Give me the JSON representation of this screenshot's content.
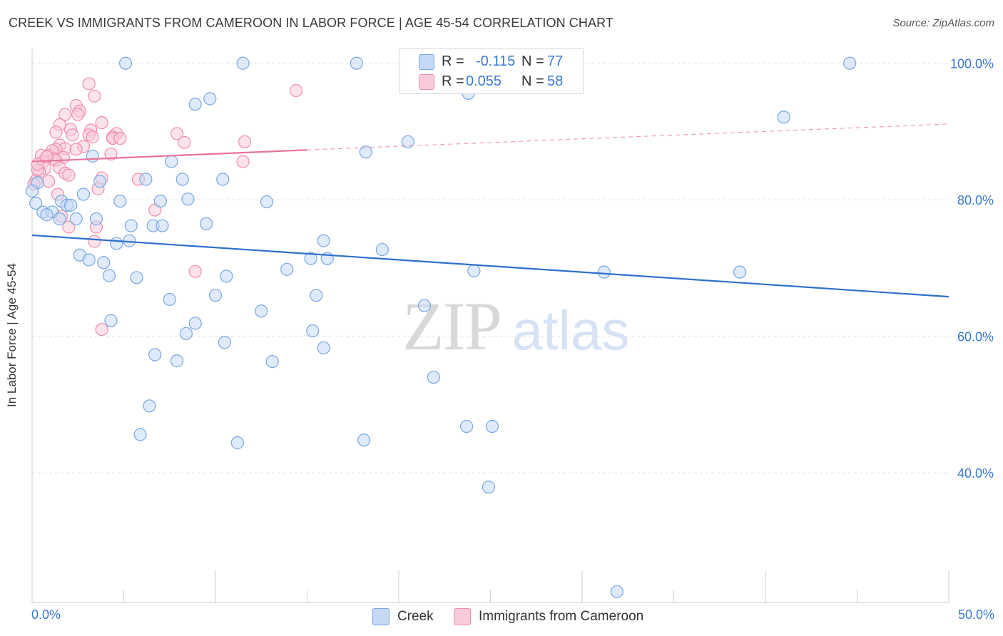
{
  "title": "CREEK VS IMMIGRANTS FROM CAMEROON IN LABOR FORCE | AGE 45-54 CORRELATION CHART",
  "source": "Source: ZipAtlas.com",
  "watermark": {
    "zip": "ZIP",
    "atlas": "atlas"
  },
  "stats": {
    "creek": {
      "r_label": "R = ",
      "r_value": "-0.115",
      "n_label": "N = ",
      "n_value": "77"
    },
    "cameroon": {
      "r_label": "R = ",
      "r_value": "0.055",
      "n_label": "N = ",
      "n_value": "58"
    }
  },
  "legend": {
    "creek": "Creek",
    "cameroon": "Immigrants from Cameroon"
  },
  "colors": {
    "creek_fill": "#c5d9f5",
    "creek_stroke": "#7aa7e0",
    "creek_line": "#2f6fcc",
    "cameroon_fill": "#f9cbd9",
    "cameroon_stroke": "#ee8fae",
    "cameroon_line": "#e8729a",
    "tick_text": "#3a78d4",
    "grid": "#e3e3e3"
  },
  "chart_data": {
    "type": "scatter",
    "xlabel": "",
    "ylabel": "In Labor Force | Age 45-54",
    "xlim": [
      0,
      50
    ],
    "ylim": [
      21,
      103
    ],
    "x_tick_labels": [
      "0.0%",
      "50.0%"
    ],
    "y_ticks": [
      40,
      60,
      80,
      100
    ],
    "y_tick_labels": [
      "40.0%",
      "60.0%",
      "80.0%",
      "100.0%"
    ],
    "grid": true,
    "series": [
      {
        "name": "Creek",
        "trend": {
          "x0": 0,
          "y0": 74.8,
          "x1": 50,
          "y1": 65.8
        },
        "points": [
          [
            5.1,
            100
          ],
          [
            11.5,
            100
          ],
          [
            17.7,
            100
          ],
          [
            44.6,
            100
          ],
          [
            24.2,
            100
          ],
          [
            23.8,
            95.6
          ],
          [
            9.7,
            94.8
          ],
          [
            8.9,
            94
          ],
          [
            41,
            92.1
          ],
          [
            20.5,
            88.5
          ],
          [
            18.2,
            87
          ],
          [
            3.3,
            86.4
          ],
          [
            7.6,
            85.6
          ],
          [
            6.2,
            83
          ],
          [
            8.2,
            83
          ],
          [
            10.4,
            83
          ],
          [
            3.7,
            82.7
          ],
          [
            2.8,
            80.8
          ],
          [
            8.5,
            80.1
          ],
          [
            4.8,
            79.8
          ],
          [
            7,
            79.8
          ],
          [
            12.8,
            79.7
          ],
          [
            1.6,
            79.8
          ],
          [
            0.2,
            79.5
          ],
          [
            1.9,
            79.2
          ],
          [
            2.1,
            79.2
          ],
          [
            0.6,
            78.2
          ],
          [
            1.1,
            78.2
          ],
          [
            0.8,
            77.8
          ],
          [
            1.5,
            77.2
          ],
          [
            2.4,
            77.2
          ],
          [
            3.5,
            77.2
          ],
          [
            9.5,
            76.5
          ],
          [
            5.4,
            76.2
          ],
          [
            6.6,
            76.2
          ],
          [
            7.1,
            76.2
          ],
          [
            15.9,
            74
          ],
          [
            5.3,
            74
          ],
          [
            4.6,
            73.6
          ],
          [
            19.1,
            72.7
          ],
          [
            2.6,
            71.9
          ],
          [
            15.2,
            71.4
          ],
          [
            16.1,
            71.4
          ],
          [
            3.1,
            71.2
          ],
          [
            3.9,
            70.8
          ],
          [
            13.9,
            69.8
          ],
          [
            24.1,
            69.6
          ],
          [
            31.2,
            69.4
          ],
          [
            38.6,
            69.4
          ],
          [
            4.2,
            68.9
          ],
          [
            10.6,
            68.8
          ],
          [
            5.7,
            68.6
          ],
          [
            10,
            66
          ],
          [
            15.5,
            66
          ],
          [
            7.5,
            65.4
          ],
          [
            21.4,
            64.5
          ],
          [
            12.5,
            63.7
          ],
          [
            4.3,
            62.3
          ],
          [
            8.9,
            61.9
          ],
          [
            15.3,
            60.8
          ],
          [
            8.4,
            60.4
          ],
          [
            10.5,
            59.1
          ],
          [
            15.9,
            58.3
          ],
          [
            6.7,
            57.3
          ],
          [
            7.9,
            56.4
          ],
          [
            13.1,
            56.3
          ],
          [
            21.9,
            54
          ],
          [
            6.4,
            49.8
          ],
          [
            23.7,
            46.8
          ],
          [
            25.1,
            46.8
          ],
          [
            5.9,
            45.6
          ],
          [
            18.1,
            44.8
          ],
          [
            11.2,
            44.4
          ],
          [
            24.9,
            37.9
          ],
          [
            31.9,
            22.6
          ],
          [
            0.3,
            82.5
          ],
          [
            0,
            81.3
          ]
        ]
      },
      {
        "name": "Immigrants from Cameroon",
        "trend": {
          "x0": 0,
          "y0": 85.6,
          "x1": 15,
          "y1": 87.3,
          "dash_to": {
            "x": 50,
            "y": 91.1
          }
        },
        "points": [
          [
            3.1,
            97
          ],
          [
            14.4,
            96
          ],
          [
            3.4,
            95.2
          ],
          [
            2.4,
            93.8
          ],
          [
            2.6,
            93
          ],
          [
            1.8,
            92.5
          ],
          [
            2.5,
            92.5
          ],
          [
            3.8,
            91.3
          ],
          [
            1.5,
            91
          ],
          [
            2.1,
            90.3
          ],
          [
            3.2,
            90.2
          ],
          [
            1.3,
            89.9
          ],
          [
            4.6,
            89.7
          ],
          [
            3.1,
            89.5
          ],
          [
            7.9,
            89.7
          ],
          [
            3.3,
            89.2
          ],
          [
            4.4,
            89.2
          ],
          [
            4.4,
            89
          ],
          [
            2.2,
            89.5
          ],
          [
            8.3,
            88.4
          ],
          [
            11.6,
            88.5
          ],
          [
            1.5,
            88
          ],
          [
            2.8,
            87.8
          ],
          [
            1.8,
            87.5
          ],
          [
            1.3,
            87.4
          ],
          [
            2.4,
            87.4
          ],
          [
            1.1,
            87.2
          ],
          [
            0.5,
            86.5
          ],
          [
            0.9,
            86.5
          ],
          [
            1.7,
            86.2
          ],
          [
            4.3,
            86.7
          ],
          [
            1.2,
            86
          ],
          [
            0.6,
            85.6
          ],
          [
            0.7,
            84.6
          ],
          [
            1.3,
            85.8
          ],
          [
            11.5,
            85.6
          ],
          [
            1.5,
            84.7
          ],
          [
            0.4,
            84.1
          ],
          [
            0.3,
            84.4
          ],
          [
            1.8,
            83.9
          ],
          [
            2,
            83.6
          ],
          [
            3.8,
            83.2
          ],
          [
            5.8,
            83
          ],
          [
            0.2,
            82.8
          ],
          [
            0.9,
            82.7
          ],
          [
            0.1,
            82.3
          ],
          [
            3.6,
            81.6
          ],
          [
            1.4,
            80.8
          ],
          [
            6.7,
            78.5
          ],
          [
            1.6,
            77.6
          ],
          [
            3.5,
            76
          ],
          [
            2,
            76
          ],
          [
            3.4,
            73.9
          ],
          [
            8.9,
            69.5
          ],
          [
            3.8,
            61
          ],
          [
            0.3,
            85.2
          ],
          [
            0.8,
            86.3
          ],
          [
            4.8,
            89
          ]
        ]
      }
    ]
  }
}
